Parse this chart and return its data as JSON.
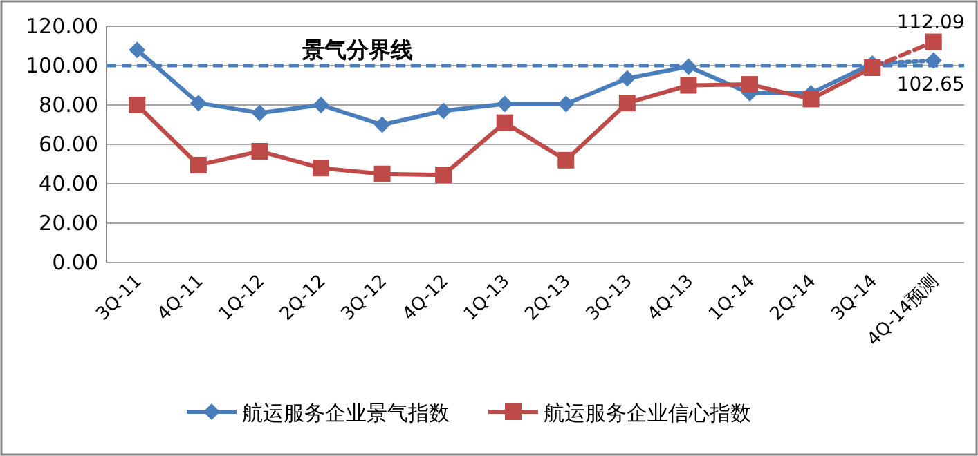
{
  "chart_data": {
    "type": "line",
    "categories": [
      "3Q-11",
      "4Q-11",
      "1Q-12",
      "2Q-12",
      "3Q-12",
      "4Q-12",
      "1Q-13",
      "2Q-13",
      "3Q-13",
      "4Q-13",
      "1Q-14",
      "2Q-14",
      "3Q-14",
      "4Q-14预测"
    ],
    "series": [
      {
        "name": "航运服务企业景气指数",
        "color": "#4a7ebb",
        "marker": "diamond",
        "line_style": "solid",
        "values": [
          108,
          81,
          76,
          80,
          70,
          77,
          80.5,
          80.5,
          93.5,
          99.5,
          86,
          86,
          101,
          null
        ]
      },
      {
        "name": "航运服务企业信心指数",
        "color": "#be4b48",
        "marker": "square",
        "line_style": "solid",
        "values": [
          80,
          49.5,
          56.5,
          48,
          45,
          44.5,
          71,
          52,
          81,
          90,
          90.5,
          83,
          99,
          null
        ]
      },
      {
        "color": "#4a7ebb",
        "marker": "diamond",
        "line_style": "dotted",
        "values": [
          null,
          null,
          null,
          null,
          null,
          null,
          null,
          null,
          null,
          null,
          null,
          null,
          101,
          102.65
        ],
        "value_labels": [
          null,
          null,
          null,
          null,
          null,
          null,
          null,
          null,
          null,
          null,
          null,
          null,
          null,
          "102.65"
        ]
      },
      {
        "color": "#be4b48",
        "marker": "square",
        "line_style": "dashed",
        "values": [
          null,
          null,
          null,
          null,
          null,
          null,
          null,
          null,
          null,
          null,
          null,
          null,
          99,
          112.09
        ],
        "value_labels": [
          null,
          null,
          null,
          null,
          null,
          null,
          null,
          null,
          null,
          null,
          null,
          null,
          null,
          "112.09"
        ]
      }
    ],
    "ylim": [
      0,
      120
    ],
    "yticks": [
      {
        "value": 0,
        "label": "0.00"
      },
      {
        "value": 20,
        "label": "20.00"
      },
      {
        "value": 40,
        "label": "40.00"
      },
      {
        "value": 60,
        "label": "60.00"
      },
      {
        "value": 80,
        "label": "80.00"
      },
      {
        "value": 100,
        "label": "100.00"
      },
      {
        "value": 120,
        "label": "120.00"
      }
    ],
    "grid": "y",
    "legend": "bottom",
    "ref_lines": [
      {
        "axis": "y",
        "value": 100,
        "label": "景气分界线",
        "color": "#4a7ebb",
        "line_style": "dashed"
      }
    ]
  }
}
